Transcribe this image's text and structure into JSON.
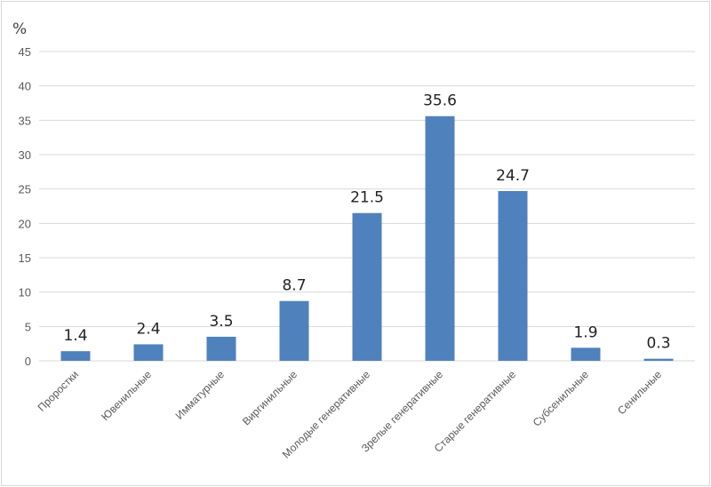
{
  "chart_data": {
    "type": "bar",
    "ylabel": "%",
    "ylim": [
      0,
      45
    ],
    "ytick_step": 5,
    "yticks": [
      "0",
      "5",
      "10",
      "15",
      "20",
      "25",
      "30",
      "35",
      "40",
      "45"
    ],
    "grid": true,
    "categories": [
      "Проростки",
      "Ювенильные",
      "Имматурные",
      "Виргинильные",
      "Молодые генеративные",
      "Зрелые генеративные",
      "Старые генеративные",
      "Субсенильные",
      "Сенильные"
    ],
    "values": [
      1.4,
      2.4,
      3.5,
      8.7,
      21.5,
      35.6,
      24.7,
      1.9,
      0.3
    ],
    "data_labels": [
      "1.4",
      "2.4",
      "3.5",
      "8.7",
      "21.5",
      "35.6",
      "24.7",
      "1.9",
      "0.3"
    ],
    "bar_color": "#4f81bd",
    "gridline_color": "#d9d9d9"
  }
}
